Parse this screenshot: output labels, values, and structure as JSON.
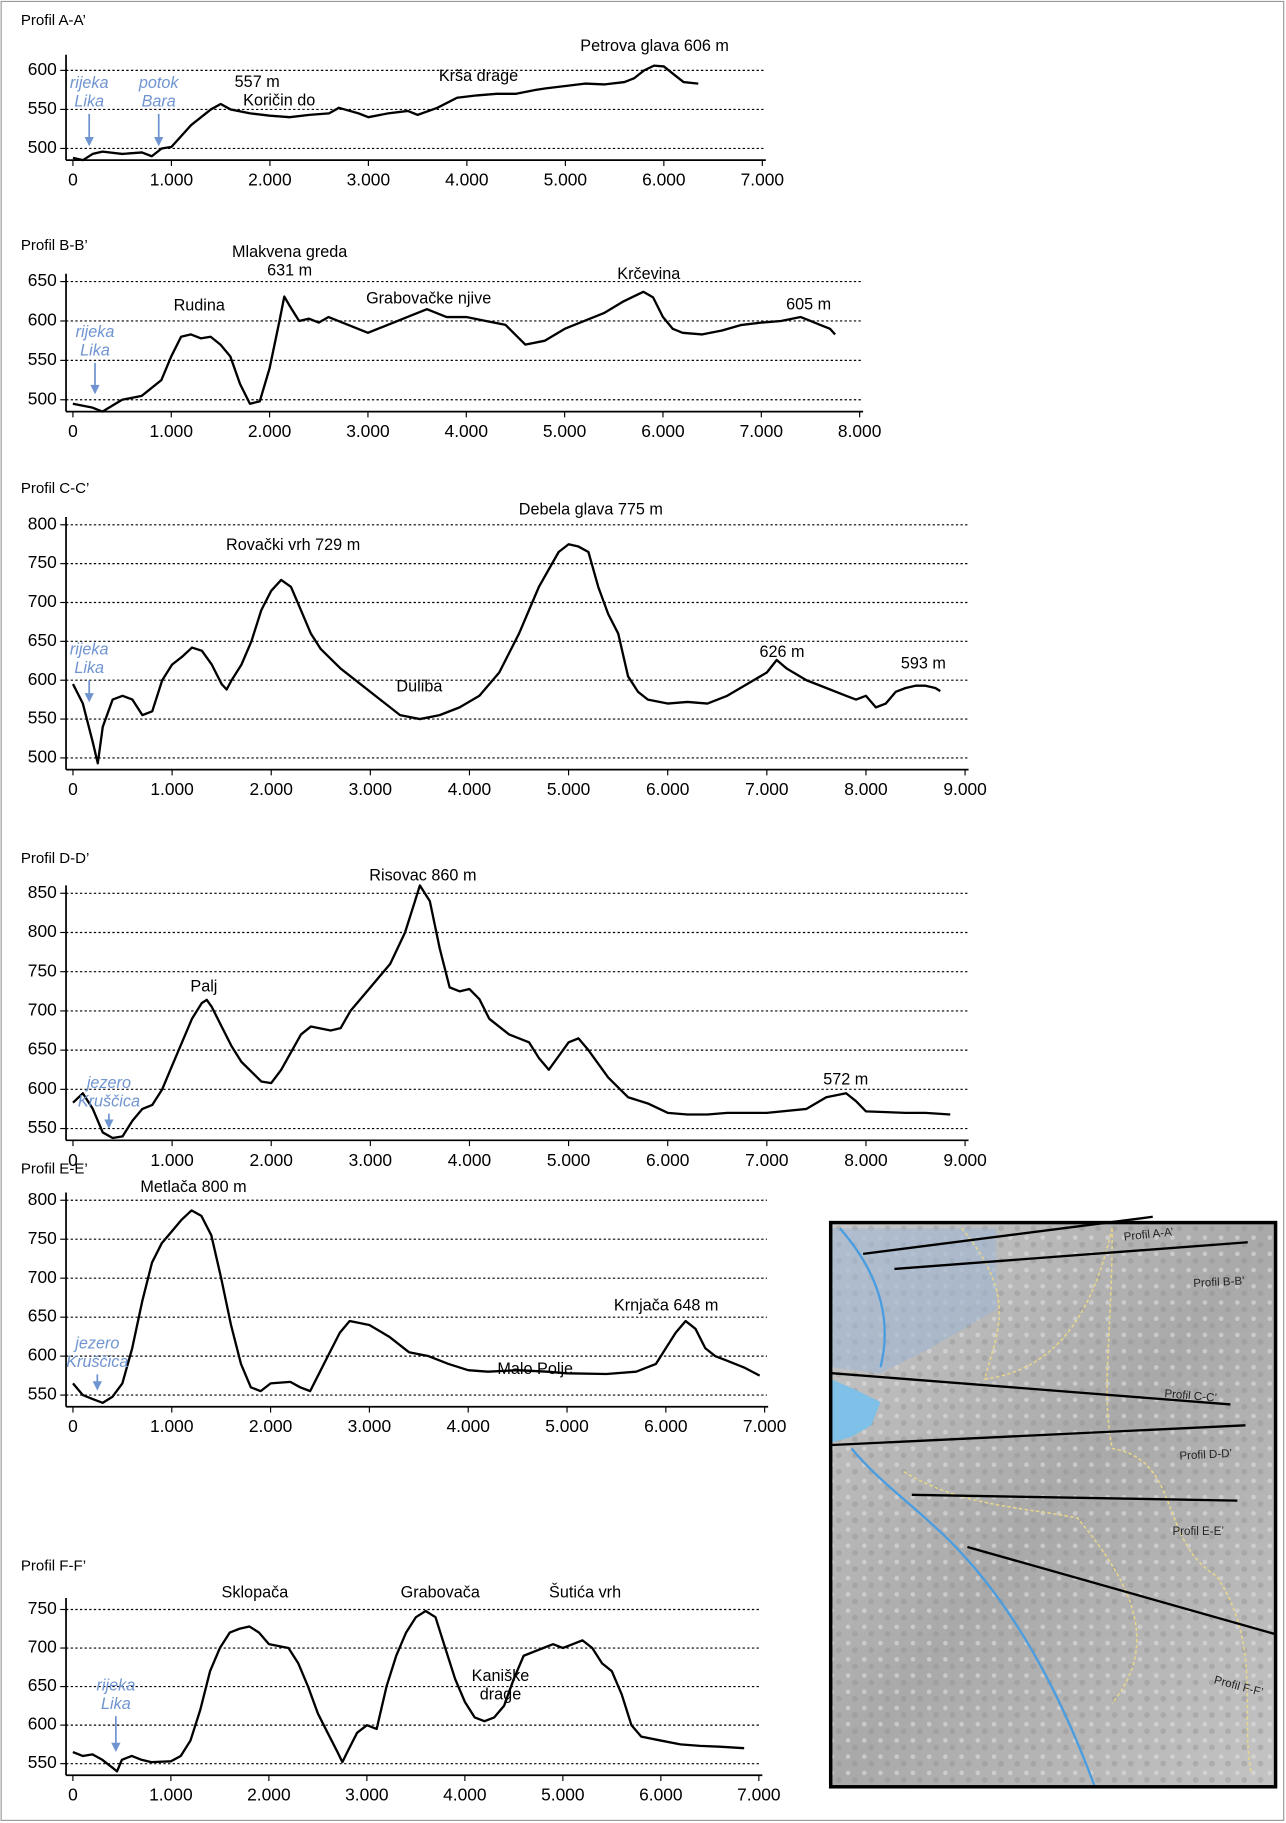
{
  "chart_data": [
    {
      "type": "line",
      "title": "Profil A-A’",
      "color": "#000000",
      "grid": true,
      "x": [
        0,
        100,
        200,
        300,
        500,
        700,
        800,
        900,
        1000,
        1200,
        1400,
        1500,
        1600,
        1800,
        2000,
        2200,
        2400,
        2600,
        2700,
        2900,
        3000,
        3200,
        3400,
        3500,
        3700,
        3900,
        4100,
        4300,
        4500,
        4700,
        4800,
        5000,
        5200,
        5400,
        5600,
        5700,
        5800,
        5900,
        6000,
        6100,
        6200,
        6350
      ],
      "values": [
        488,
        485,
        493,
        496,
        493,
        495,
        490,
        500,
        502,
        530,
        550,
        557,
        550,
        545,
        542,
        540,
        543,
        545,
        552,
        545,
        540,
        545,
        548,
        543,
        552,
        565,
        568,
        570,
        570,
        575,
        577,
        580,
        583,
        582,
        585,
        590,
        600,
        606,
        605,
        595,
        585,
        583
      ],
      "xlim": [
        -70,
        7000
      ],
      "ylim": [
        485,
        620
      ],
      "xticks": [
        0,
        {
          "value": 1000,
          "label": "1.000"
        },
        {
          "value": 2000,
          "label": "2.000"
        },
        {
          "value": 3000,
          "label": "3.000"
        },
        {
          "value": 4000,
          "label": "4.000"
        },
        {
          "value": 5000,
          "label": "5.000"
        },
        {
          "value": 6000,
          "label": "6.000"
        },
        {
          "value": 7000,
          "label": "7.000"
        }
      ],
      "yticks": [
        500,
        550,
        600
      ],
      "annotations": [
        {
          "lines": [
            "Petrova glava 606 m"
          ],
          "color": "#000000"
        },
        {
          "lines": [
            "Krša drage"
          ],
          "color": "#000000"
        },
        {
          "lines": [
            "557 m"
          ],
          "color": "#000000"
        },
        {
          "lines": [
            "Koričin do"
          ],
          "color": "#000000"
        },
        {
          "lines": [
            "rijeka",
            "Lika"
          ],
          "color": "#6f94d0"
        },
        {
          "lines": [
            "potok",
            "Bara"
          ],
          "color": "#6f94d0"
        }
      ]
    },
    {
      "type": "line",
      "title": "Profil B-B’",
      "color": "#000000",
      "grid": true,
      "x": [
        0,
        200,
        300,
        500,
        700,
        900,
        1000,
        1100,
        1200,
        1300,
        1400,
        1500,
        1600,
        1700,
        1800,
        1900,
        2000,
        2100,
        2150,
        2200,
        2300,
        2400,
        2500,
        2600,
        2800,
        3000,
        3200,
        3400,
        3600,
        3800,
        4000,
        4200,
        4400,
        4600,
        4800,
        5000,
        5200,
        5400,
        5600,
        5800,
        5900,
        6000,
        6100,
        6200,
        6400,
        6600,
        6800,
        7000,
        7200,
        7400,
        7500,
        7600,
        7700,
        7750
      ],
      "values": [
        495,
        490,
        485,
        500,
        505,
        525,
        555,
        580,
        583,
        578,
        580,
        570,
        555,
        520,
        495,
        498,
        540,
        600,
        631,
        620,
        600,
        603,
        598,
        605,
        595,
        585,
        595,
        605,
        615,
        605,
        605,
        600,
        595,
        570,
        575,
        590,
        600,
        610,
        625,
        637,
        630,
        605,
        590,
        585,
        583,
        588,
        595,
        598,
        600,
        605,
        600,
        595,
        590,
        583
      ],
      "xlim": [
        -70,
        8000
      ],
      "ylim": [
        485,
        660
      ],
      "xticks": [
        0,
        {
          "value": 1000,
          "label": "1.000"
        },
        {
          "value": 2000,
          "label": "2.000"
        },
        {
          "value": 3000,
          "label": "3.000"
        },
        {
          "value": 4000,
          "label": "4.000"
        },
        {
          "value": 5000,
          "label": "5.000"
        },
        {
          "value": 6000,
          "label": "6.000"
        },
        {
          "value": 7000,
          "label": "7.000"
        },
        {
          "value": 8000,
          "label": "8.000"
        }
      ],
      "yticks": [
        500,
        550,
        600,
        650
      ],
      "annotations": [
        {
          "lines": [
            "Mlakvena greda",
            "631 m"
          ],
          "color": "#000000"
        },
        {
          "lines": [
            "Rudina"
          ],
          "color": "#000000"
        },
        {
          "lines": [
            "Grabovačke njive"
          ],
          "color": "#000000"
        },
        {
          "lines": [
            "Krčevina"
          ],
          "color": "#000000"
        },
        {
          "lines": [
            "605 m"
          ],
          "color": "#000000"
        },
        {
          "lines": [
            "rijeka",
            "Lika"
          ],
          "color": "#6f94d0"
        }
      ]
    },
    {
      "type": "line",
      "title": "Profil C-C’",
      "color": "#000000",
      "grid": true,
      "x": [
        0,
        100,
        200,
        250,
        300,
        400,
        500,
        600,
        700,
        800,
        900,
        1000,
        1100,
        1200,
        1300,
        1400,
        1500,
        1550,
        1600,
        1700,
        1800,
        1900,
        2000,
        2100,
        2200,
        2300,
        2400,
        2500,
        2700,
        2900,
        3100,
        3300,
        3500,
        3700,
        3900,
        4100,
        4300,
        4500,
        4700,
        4900,
        5000,
        5100,
        5200,
        5300,
        5400,
        5500,
        5600,
        5700,
        5800,
        6000,
        6200,
        6400,
        6600,
        6800,
        7000,
        7100,
        7200,
        7400,
        7600,
        7800,
        7900,
        8000,
        8100,
        8200,
        8300,
        8400,
        8500,
        8600,
        8700,
        8750
      ],
      "values": [
        595,
        570,
        520,
        493,
        540,
        575,
        580,
        575,
        555,
        560,
        600,
        620,
        630,
        642,
        638,
        620,
        595,
        588,
        600,
        620,
        650,
        690,
        715,
        729,
        720,
        690,
        660,
        640,
        615,
        595,
        575,
        555,
        550,
        555,
        565,
        580,
        610,
        660,
        720,
        765,
        775,
        772,
        765,
        720,
        685,
        660,
        605,
        585,
        575,
        570,
        572,
        570,
        580,
        595,
        610,
        626,
        615,
        600,
        590,
        580,
        575,
        580,
        565,
        570,
        585,
        590,
        593,
        593,
        590,
        586
      ],
      "xlim": [
        -70,
        9000
      ],
      "ylim": [
        485,
        810
      ],
      "xticks": [
        0,
        {
          "value": 1000,
          "label": "1.000"
        },
        {
          "value": 2000,
          "label": "2.000"
        },
        {
          "value": 3000,
          "label": "3.000"
        },
        {
          "value": 4000,
          "label": "4.000"
        },
        {
          "value": 5000,
          "label": "5.000"
        },
        {
          "value": 6000,
          "label": "6.000"
        },
        {
          "value": 7000,
          "label": "7.000"
        },
        {
          "value": 8000,
          "label": "8.000"
        },
        {
          "value": 9000,
          "label": "9.000"
        }
      ],
      "yticks": [
        500,
        550,
        600,
        650,
        700,
        750,
        800
      ],
      "annotations": [
        {
          "lines": [
            "Debela glava 775 m"
          ],
          "color": "#000000"
        },
        {
          "lines": [
            "Rovački vrh 729 m"
          ],
          "color": "#000000"
        },
        {
          "lines": [
            "626 m"
          ],
          "color": "#000000"
        },
        {
          "lines": [
            "593 m"
          ],
          "color": "#000000"
        },
        {
          "lines": [
            "Duliba"
          ],
          "color": "#000000"
        },
        {
          "lines": [
            "rijeka",
            "Lika"
          ],
          "color": "#6f94d0"
        }
      ]
    },
    {
      "type": "line",
      "title": "Profil D-D’",
      "color": "#000000",
      "grid": true,
      "x": [
        0,
        100,
        200,
        300,
        400,
        500,
        600,
        700,
        800,
        900,
        1000,
        1100,
        1200,
        1300,
        1350,
        1400,
        1500,
        1600,
        1700,
        1900,
        2000,
        2100,
        2300,
        2400,
        2600,
        2700,
        2800,
        3000,
        3200,
        3350,
        3450,
        3500,
        3600,
        3700,
        3800,
        3900,
        4000,
        4100,
        4200,
        4400,
        4600,
        4700,
        4800,
        5000,
        5100,
        5200,
        5400,
        5600,
        5800,
        6000,
        6200,
        6400,
        6600,
        7000,
        7400,
        7600,
        7800,
        7900,
        8000,
        8400,
        8600,
        8850
      ],
      "values": [
        583,
        595,
        575,
        545,
        538,
        540,
        560,
        575,
        580,
        600,
        630,
        660,
        690,
        710,
        714,
        705,
        680,
        655,
        635,
        610,
        608,
        625,
        670,
        680,
        675,
        678,
        700,
        730,
        760,
        800,
        840,
        860,
        840,
        780,
        730,
        725,
        728,
        715,
        690,
        670,
        660,
        640,
        625,
        660,
        665,
        650,
        615,
        590,
        582,
        570,
        568,
        568,
        570,
        570,
        575,
        590,
        595,
        585,
        572,
        570,
        570,
        568
      ],
      "xlim": [
        -70,
        9000
      ],
      "ylim": [
        535,
        860
      ],
      "xticks": [
        0,
        {
          "value": 1000,
          "label": "1.000"
        },
        {
          "value": 2000,
          "label": "2.000"
        },
        {
          "value": 3000,
          "label": "3.000"
        },
        {
          "value": 4000,
          "label": "4.000"
        },
        {
          "value": 5000,
          "label": "5.000"
        },
        {
          "value": 6000,
          "label": "6.000"
        },
        {
          "value": 7000,
          "label": "7.000"
        },
        {
          "value": 8000,
          "label": "8.000"
        },
        {
          "value": 9000,
          "label": "9.000"
        }
      ],
      "yticks": [
        550,
        600,
        650,
        700,
        750,
        800,
        850
      ],
      "annotations": [
        {
          "lines": [
            "Risovac 860 m"
          ],
          "color": "#000000"
        },
        {
          "lines": [
            "Palj"
          ],
          "color": "#000000"
        },
        {
          "lines": [
            "572 m"
          ],
          "color": "#000000"
        },
        {
          "lines": [
            "jezero",
            "Kruščica"
          ],
          "color": "#6f94d0"
        }
      ]
    },
    {
      "type": "line",
      "title": "Profil E-E’",
      "color": "#000000",
      "grid": true,
      "x": [
        0,
        100,
        200,
        300,
        400,
        500,
        600,
        700,
        800,
        900,
        1000,
        1100,
        1200,
        1300,
        1400,
        1500,
        1600,
        1700,
        1800,
        1900,
        2000,
        2200,
        2300,
        2400,
        2500,
        2600,
        2700,
        2800,
        3000,
        3200,
        3400,
        3600,
        3800,
        4000,
        4200,
        4500,
        4800,
        5000,
        5400,
        5700,
        5900,
        6000,
        6100,
        6200,
        6300,
        6400,
        6500,
        6600,
        6800,
        6950
      ],
      "values": [
        565,
        550,
        545,
        540,
        548,
        565,
        610,
        670,
        720,
        745,
        760,
        775,
        787,
        780,
        755,
        700,
        640,
        590,
        560,
        555,
        565,
        567,
        560,
        555,
        580,
        605,
        630,
        645,
        640,
        625,
        605,
        600,
        590,
        582,
        580,
        582,
        580,
        578,
        577,
        580,
        590,
        610,
        630,
        645,
        635,
        610,
        600,
        595,
        585,
        575
      ],
      "xlim": [
        -70,
        7000
      ],
      "ylim": [
        535,
        810
      ],
      "xticks": [
        0,
        {
          "value": 1000,
          "label": "1.000"
        },
        {
          "value": 2000,
          "label": "2.000"
        },
        {
          "value": 3000,
          "label": "3.000"
        },
        {
          "value": 4000,
          "label": "4.000"
        },
        {
          "value": 5000,
          "label": "5.000"
        },
        {
          "value": 6000,
          "label": "6.000"
        },
        {
          "value": 7000,
          "label": "7.000"
        }
      ],
      "yticks": [
        550,
        600,
        650,
        700,
        750,
        800
      ],
      "annotations": [
        {
          "lines": [
            "Metlača 800 m"
          ],
          "color": "#000000"
        },
        {
          "lines": [
            "Krnjača 648 m"
          ],
          "color": "#000000"
        },
        {
          "lines": [
            "Malo Polje"
          ],
          "color": "#000000"
        },
        {
          "lines": [
            "jezero",
            "Kruščica"
          ],
          "color": "#6f94d0"
        }
      ]
    },
    {
      "type": "line",
      "title": "Profil F-F’",
      "color": "#000000",
      "grid": true,
      "x": [
        0,
        100,
        200,
        300,
        400,
        450,
        500,
        600,
        700,
        800,
        1000,
        1100,
        1200,
        1300,
        1400,
        1500,
        1600,
        1700,
        1800,
        1900,
        2000,
        2200,
        2300,
        2400,
        2500,
        2600,
        2700,
        2750,
        2800,
        2900,
        3000,
        3100,
        3200,
        3300,
        3400,
        3500,
        3600,
        3700,
        3800,
        3900,
        4000,
        4100,
        4200,
        4300,
        4400,
        4500,
        4600,
        4800,
        4900,
        5000,
        5100,
        5200,
        5300,
        5400,
        5500,
        5600,
        5700,
        5800,
        6000,
        6200,
        6400,
        6600,
        6850
      ],
      "values": [
        565,
        560,
        562,
        555,
        545,
        540,
        555,
        560,
        555,
        552,
        553,
        560,
        580,
        620,
        670,
        700,
        720,
        725,
        728,
        720,
        705,
        700,
        680,
        650,
        615,
        590,
        565,
        552,
        565,
        590,
        600,
        595,
        650,
        690,
        720,
        740,
        748,
        740,
        700,
        660,
        630,
        610,
        605,
        610,
        625,
        660,
        690,
        700,
        705,
        700,
        705,
        710,
        700,
        680,
        670,
        640,
        600,
        585,
        580,
        575,
        573,
        572,
        570
      ],
      "xlim": [
        -70,
        7000
      ],
      "ylim": [
        535,
        765
      ],
      "xticks": [
        0,
        {
          "value": 1000,
          "label": "1.000"
        },
        {
          "value": 2000,
          "label": "2.000"
        },
        {
          "value": 3000,
          "label": "3.000"
        },
        {
          "value": 4000,
          "label": "4.000"
        },
        {
          "value": 5000,
          "label": "5.000"
        },
        {
          "value": 6000,
          "label": "6.000"
        },
        {
          "value": 7000,
          "label": "7.000"
        }
      ],
      "yticks": [
        550,
        600,
        650,
        700,
        750
      ],
      "annotations": [
        {
          "lines": [
            "Sklopača"
          ],
          "color": "#000000"
        },
        {
          "lines": [
            "Grabovača"
          ],
          "color": "#000000"
        },
        {
          "lines": [
            "Šutića vrh"
          ],
          "color": "#000000"
        },
        {
          "lines": [
            "Kaniške",
            "drage"
          ],
          "color": "#000000"
        },
        {
          "lines": [
            "rijeka",
            "Lika"
          ],
          "color": "#6f94d0"
        }
      ]
    }
  ],
  "map": {
    "labels": [
      "Profil A-A’",
      "Profil B-B’",
      "Profil C-C’",
      "Profil D-D’",
      "Profil E-E’",
      "Profil F-F’"
    ]
  }
}
